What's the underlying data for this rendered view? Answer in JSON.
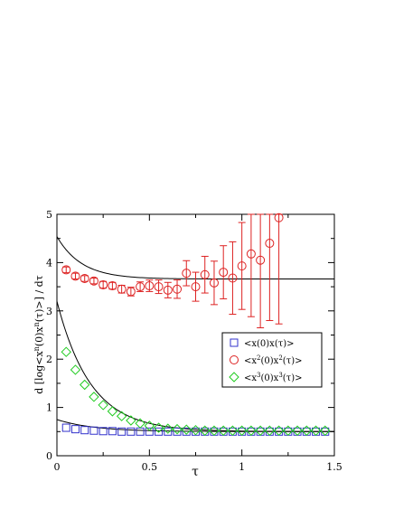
{
  "chart_data": {
    "type": "scatter",
    "xlabel": "τ",
    "ylabel_parts": [
      "d [log<x",
      "n",
      "(0)x",
      "n",
      "(τ)>] / dτ"
    ],
    "xlim": [
      0,
      1.5
    ],
    "ylim": [
      0,
      5
    ],
    "xticks": [
      0,
      0.5,
      1,
      1.5
    ],
    "xtick_labels": [
      "0",
      "0.5",
      "1",
      "1.5"
    ],
    "yticks": [
      0,
      1,
      2,
      3,
      4,
      5
    ],
    "ytick_labels": [
      "0",
      "1",
      "2",
      "3",
      "4",
      "5"
    ],
    "legend_position": "middle-right",
    "series": [
      {
        "name": "<x(0)x(τ)>",
        "name_parts": [
          "<x(0)x(τ)>"
        ],
        "marker": "square",
        "color": "#3333cc",
        "x": [
          0.05,
          0.1,
          0.15,
          0.2,
          0.25,
          0.3,
          0.35,
          0.4,
          0.45,
          0.5,
          0.55,
          0.6,
          0.65,
          0.7,
          0.75,
          0.8,
          0.85,
          0.9,
          0.95,
          1.0,
          1.05,
          1.1,
          1.15,
          1.2,
          1.25,
          1.3,
          1.35,
          1.4,
          1.45
        ],
        "y": [
          0.58,
          0.55,
          0.53,
          0.52,
          0.51,
          0.51,
          0.5,
          0.5,
          0.5,
          0.5,
          0.5,
          0.5,
          0.5,
          0.5,
          0.5,
          0.5,
          0.5,
          0.5,
          0.5,
          0.5,
          0.5,
          0.5,
          0.5,
          0.5,
          0.5,
          0.5,
          0.5,
          0.5,
          0.5
        ]
      },
      {
        "name": "<x2(0)x2(τ)>",
        "name_parts": [
          "<x",
          "2",
          "(0)x",
          "2",
          "(τ)>"
        ],
        "marker": "circle",
        "color": "#dd2222",
        "x": [
          0.05,
          0.1,
          0.15,
          0.2,
          0.25,
          0.3,
          0.35,
          0.4,
          0.45,
          0.5,
          0.55,
          0.6,
          0.65,
          0.7,
          0.75,
          0.8,
          0.85,
          0.9,
          0.95,
          1.0,
          1.05,
          1.1,
          1.15,
          1.2
        ],
        "y": [
          3.85,
          3.72,
          3.67,
          3.62,
          3.54,
          3.52,
          3.45,
          3.4,
          3.5,
          3.52,
          3.5,
          3.43,
          3.45,
          3.78,
          3.5,
          3.75,
          3.58,
          3.8,
          3.68,
          3.93,
          4.18,
          4.05,
          4.4,
          4.93
        ],
        "err": [
          0.06,
          0.06,
          0.06,
          0.06,
          0.07,
          0.07,
          0.08,
          0.09,
          0.1,
          0.12,
          0.14,
          0.16,
          0.19,
          0.26,
          0.3,
          0.38,
          0.45,
          0.55,
          0.75,
          0.9,
          1.3,
          1.4,
          1.6,
          2.2
        ]
      },
      {
        "name": "<x3(0)x3(τ)>",
        "name_parts": [
          "<x",
          "3",
          "(0)x",
          "3",
          "(τ)>"
        ],
        "marker": "diamond",
        "color": "#22cc22",
        "x": [
          0.05,
          0.1,
          0.15,
          0.2,
          0.25,
          0.3,
          0.35,
          0.4,
          0.45,
          0.5,
          0.55,
          0.6,
          0.65,
          0.7,
          0.75,
          0.8,
          0.85,
          0.9,
          0.95,
          1.0,
          1.05,
          1.1,
          1.15,
          1.2,
          1.25,
          1.3,
          1.35,
          1.4,
          1.45
        ],
        "y": [
          2.15,
          1.78,
          1.47,
          1.22,
          1.05,
          0.92,
          0.82,
          0.73,
          0.67,
          0.62,
          0.58,
          0.56,
          0.55,
          0.54,
          0.53,
          0.52,
          0.52,
          0.52,
          0.52,
          0.52,
          0.52,
          0.52,
          0.52,
          0.52,
          0.52,
          0.52,
          0.52,
          0.52,
          0.52
        ]
      }
    ],
    "fit_curves": [
      {
        "type": "exp_decay",
        "asymptote": 3.66,
        "amplitude": 0.88,
        "rate": 7.5
      },
      {
        "type": "exp_decay",
        "asymptote": 0.5,
        "amplitude": 2.7,
        "rate": 5.5
      },
      {
        "type": "exp_decay",
        "asymptote": 0.5,
        "amplitude": 0.25,
        "rate": 5.0
      }
    ]
  }
}
